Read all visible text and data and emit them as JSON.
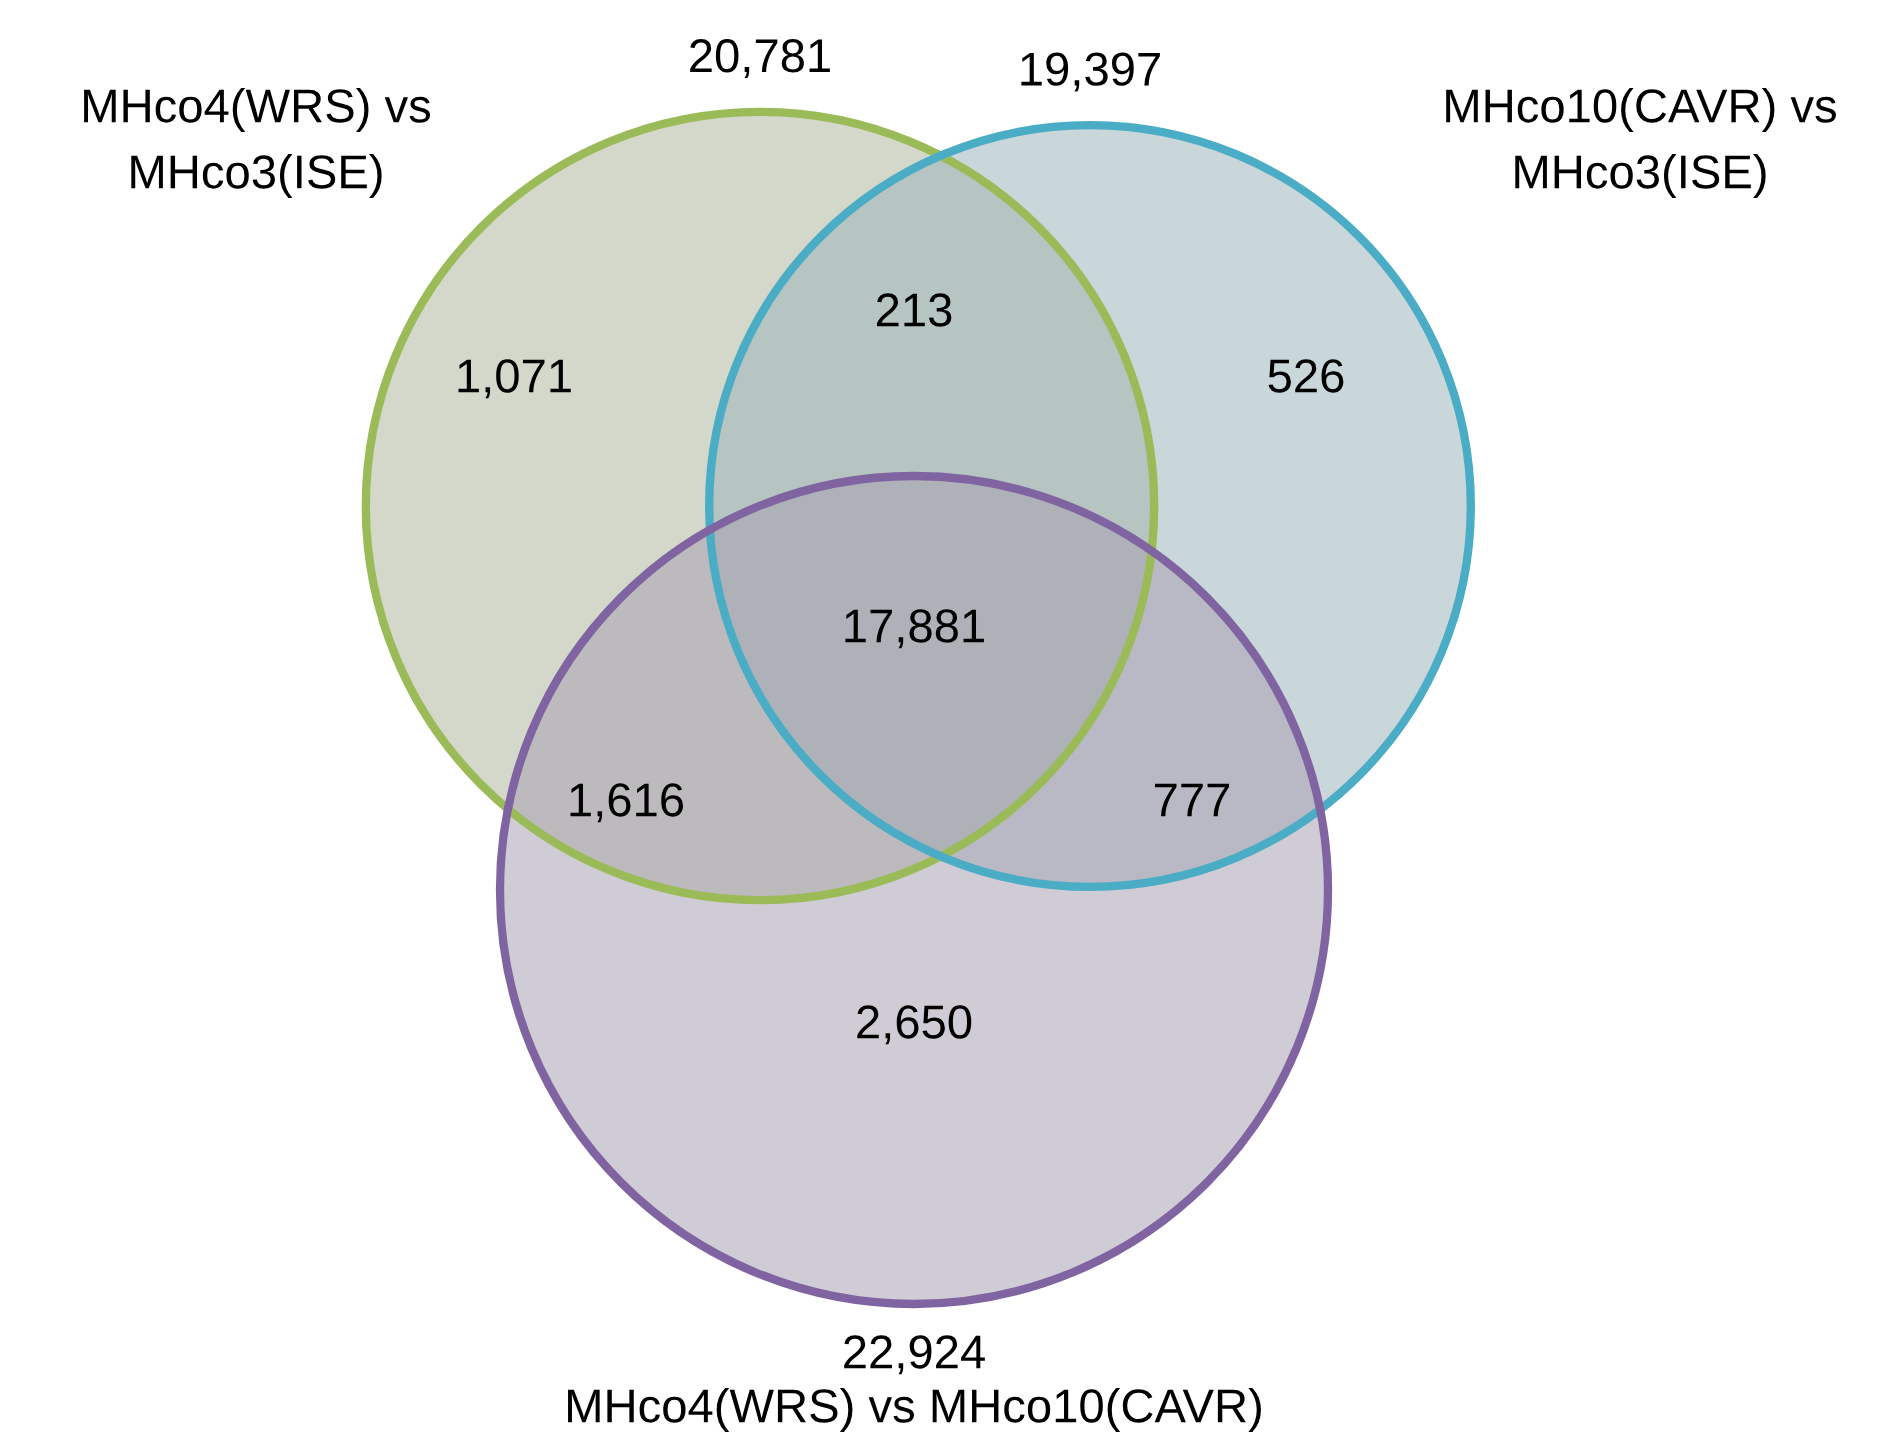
{
  "chart_data": {
    "type": "other",
    "categories": [
      "MHco4(WRS) vs MHco3(ISE)",
      "MHco10(CAVR) vs MHco3(ISE)",
      "MHco4(WRS) vs MHco10(CAVR)"
    ],
    "colors": [
      "#9bbb59",
      "#4bacc6",
      "#8064a2"
    ],
    "values": [
      20781,
      19397,
      22924
    ],
    "value_labels": [
      "20,781",
      "19,397",
      "22,924"
    ],
    "annotations": [
      "1,071",
      "526",
      "2,650",
      "213",
      "1,616",
      "777",
      "17,881"
    ]
  }
}
